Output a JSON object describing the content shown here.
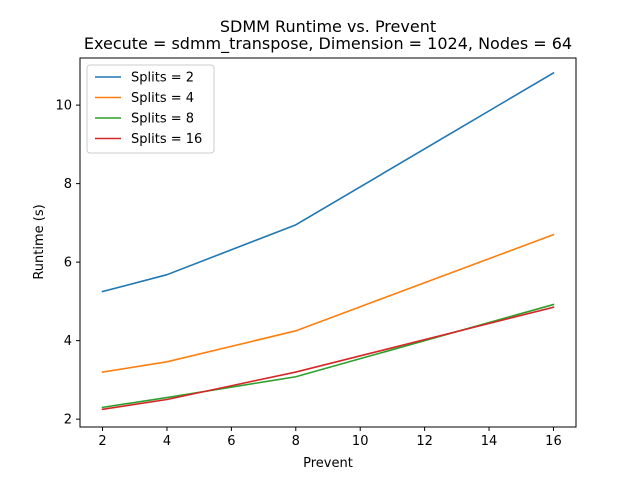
{
  "chart_data": {
    "type": "line",
    "title": "SDMM Runtime vs. Prevent",
    "subtitle": "Execute = sdmm_transpose, Dimension = 1024, Nodes = 64",
    "xlabel": "Prevent",
    "ylabel": "Runtime (s)",
    "x": [
      2,
      4,
      8,
      16
    ],
    "xlim": [
      1.3,
      16.7
    ],
    "ylim": [
      1.8,
      11.2
    ],
    "xticks": [
      2,
      4,
      6,
      8,
      10,
      12,
      14,
      16
    ],
    "yticks": [
      2,
      4,
      6,
      8,
      10
    ],
    "grid": false,
    "legend_position": "top-left",
    "series": [
      {
        "name": "Splits = 2",
        "color": "#1f77b4",
        "values": [
          5.25,
          5.68,
          6.95,
          10.82
        ]
      },
      {
        "name": "Splits = 4",
        "color": "#ff7f0e",
        "values": [
          3.2,
          3.46,
          4.25,
          6.7
        ]
      },
      {
        "name": "Splits = 8",
        "color": "#2ca02c",
        "values": [
          2.3,
          2.55,
          3.08,
          4.92
        ]
      },
      {
        "name": "Splits = 16",
        "color": "#d62728",
        "values": [
          2.25,
          2.5,
          3.2,
          4.85
        ]
      }
    ]
  }
}
